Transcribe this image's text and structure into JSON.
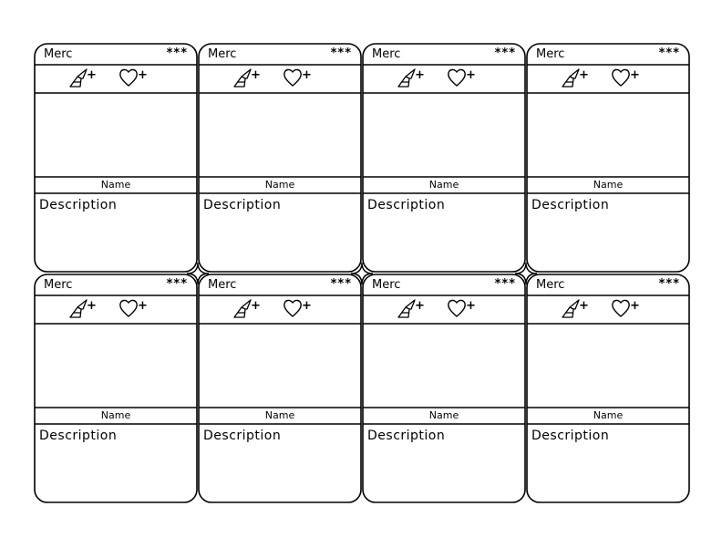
{
  "cards": [
    {
      "type": "Merc",
      "rank": "***",
      "attack_suffix": "+",
      "health_suffix": "+",
      "name": "Name",
      "description": "Description"
    },
    {
      "type": "Merc",
      "rank": "***",
      "attack_suffix": "+",
      "health_suffix": "+",
      "name": "Name",
      "description": "Description"
    },
    {
      "type": "Merc",
      "rank": "***",
      "attack_suffix": "+",
      "health_suffix": "+",
      "name": "Name",
      "description": "Description"
    },
    {
      "type": "Merc",
      "rank": "***",
      "attack_suffix": "+",
      "health_suffix": "+",
      "name": "Name",
      "description": "Description"
    },
    {
      "type": "Merc",
      "rank": "***",
      "attack_suffix": "+",
      "health_suffix": "+",
      "name": "Name",
      "description": "Description"
    },
    {
      "type": "Merc",
      "rank": "***",
      "attack_suffix": "+",
      "health_suffix": "+",
      "name": "Name",
      "description": "Description"
    },
    {
      "type": "Merc",
      "rank": "***",
      "attack_suffix": "+",
      "health_suffix": "+",
      "name": "Name",
      "description": "Description"
    },
    {
      "type": "Merc",
      "rank": "***",
      "attack_suffix": "+",
      "health_suffix": "+",
      "name": "Name",
      "description": "Description"
    }
  ],
  "icons": {
    "attack": "blade-icon",
    "health": "heart-icon"
  },
  "colors": {
    "stroke": "#000000",
    "background": "#ffffff"
  }
}
